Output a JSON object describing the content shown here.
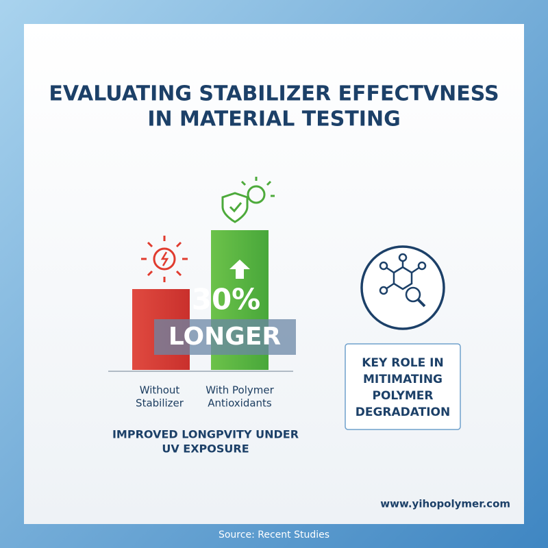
{
  "title": {
    "lines": [
      "EVALUATING STABILIZER EFFECTVNESS",
      "IN MATERIAL TESTING"
    ]
  },
  "highlight": {
    "figure": "30%",
    "word": "LONGER"
  },
  "bars": [
    {
      "label_lines": [
        "Without",
        "Stabilizer"
      ]
    },
    {
      "label_lines": [
        "With Polymer",
        "Antioxidants"
      ]
    }
  ],
  "caption": {
    "lines": [
      "IMPROVED LONGPVITY UNDER",
      "UV EXPOSURE"
    ]
  },
  "key_role": {
    "lines": [
      "KEY ROLE IN",
      "MITIMATING",
      "POLYMER",
      "DEGRADATION"
    ]
  },
  "website": "www.yihopolymer.com",
  "source": "Source: Recent Studies"
}
